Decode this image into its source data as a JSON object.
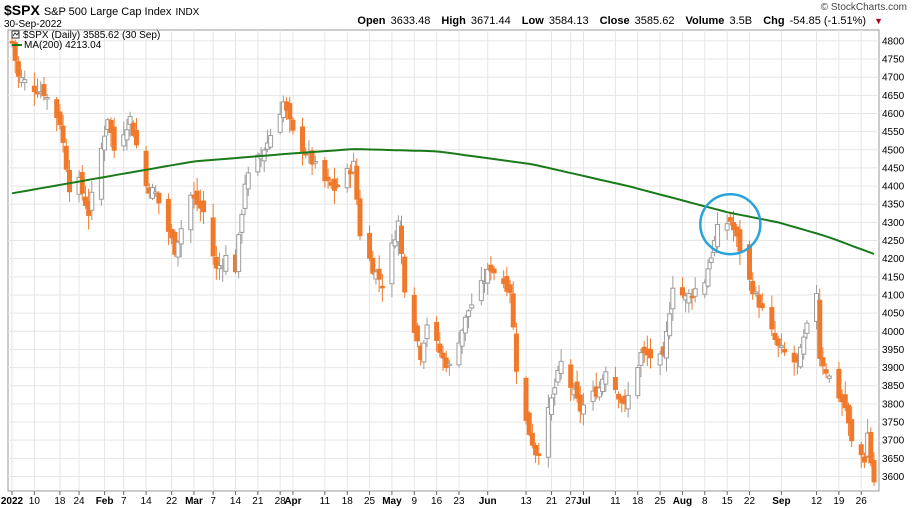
{
  "header": {
    "symbol": "$SPX",
    "name": "S&P 500 Large Cap Index",
    "exchange": "INDX",
    "date": "30-Sep-2022",
    "brand": "© StockCharts.com",
    "open_label": "Open",
    "open": "3633.48",
    "high_label": "High",
    "high": "3671.44",
    "low_label": "Low",
    "low": "3584.13",
    "close_label": "Close",
    "close": "3585.62",
    "volume_label": "Volume",
    "volume": "3.5B",
    "chg_label": "Chg",
    "chg": "-54.85 (-1.51%)"
  },
  "legend": {
    "price": "$SPX (Daily) 3585.62 (30 Sep)",
    "ma": "MA(200) 4213.04"
  },
  "colors": {
    "up": "#9c9c9c",
    "down": "#f0792b",
    "ma": "#1a7a1a",
    "circle": "#29a3dc",
    "grid": "#e6e6e6"
  },
  "chart_data": {
    "type": "candlestick",
    "ylim": [
      3560,
      4830
    ],
    "yticks": [
      3600,
      3650,
      3700,
      3750,
      3800,
      3850,
      3900,
      3950,
      4000,
      4050,
      4100,
      4150,
      4200,
      4250,
      4300,
      4350,
      4400,
      4450,
      4500,
      4550,
      4600,
      4650,
      4700,
      4750,
      4800
    ],
    "xticks": [
      {
        "label": "2022",
        "date": "2022-01-03",
        "bold": true
      },
      {
        "label": "10",
        "date": "2022-01-10"
      },
      {
        "label": "18",
        "date": "2022-01-18"
      },
      {
        "label": "24",
        "date": "2022-01-24"
      },
      {
        "label": "Feb",
        "date": "2022-02-01",
        "bold": true
      },
      {
        "label": "7",
        "date": "2022-02-07"
      },
      {
        "label": "14",
        "date": "2022-02-14"
      },
      {
        "label": "22",
        "date": "2022-02-22"
      },
      {
        "label": "Mar",
        "date": "2022-03-01",
        "bold": true
      },
      {
        "label": "7",
        "date": "2022-03-07"
      },
      {
        "label": "14",
        "date": "2022-03-14"
      },
      {
        "label": "21",
        "date": "2022-03-21"
      },
      {
        "label": "28",
        "date": "2022-03-28"
      },
      {
        "label": "Apr",
        "date": "2022-04-01",
        "bold": true
      },
      {
        "label": "11",
        "date": "2022-04-11"
      },
      {
        "label": "18",
        "date": "2022-04-18"
      },
      {
        "label": "25",
        "date": "2022-04-25"
      },
      {
        "label": "May",
        "date": "2022-05-02",
        "bold": true
      },
      {
        "label": "9",
        "date": "2022-05-09"
      },
      {
        "label": "16",
        "date": "2022-05-16"
      },
      {
        "label": "23",
        "date": "2022-05-23"
      },
      {
        "label": "Jun",
        "date": "2022-06-01",
        "bold": true
      },
      {
        "label": "13",
        "date": "2022-06-13"
      },
      {
        "label": "21",
        "date": "2022-06-21"
      },
      {
        "label": "27",
        "date": "2022-06-27"
      },
      {
        "label": "Jul",
        "date": "2022-07-01",
        "bold": true
      },
      {
        "label": "11",
        "date": "2022-07-11"
      },
      {
        "label": "18",
        "date": "2022-07-18"
      },
      {
        "label": "25",
        "date": "2022-07-25"
      },
      {
        "label": "Aug",
        "date": "2022-08-01",
        "bold": true
      },
      {
        "label": "8",
        "date": "2022-08-08"
      },
      {
        "label": "15",
        "date": "2022-08-15"
      },
      {
        "label": "22",
        "date": "2022-08-22"
      },
      {
        "label": "Sep",
        "date": "2022-09-01",
        "bold": true
      },
      {
        "label": "12",
        "date": "2022-09-12"
      },
      {
        "label": "19",
        "date": "2022-09-19"
      },
      {
        "label": "26",
        "date": "2022-09-26"
      }
    ],
    "close_keypoints": [
      [
        "2022-01-03",
        4796
      ],
      [
        "2022-01-05",
        4700
      ],
      [
        "2022-01-10",
        4670
      ],
      [
        "2022-01-13",
        4659
      ],
      [
        "2022-01-18",
        4577
      ],
      [
        "2022-01-21",
        4398
      ],
      [
        "2022-01-24",
        4410
      ],
      [
        "2022-01-27",
        4326
      ],
      [
        "2022-02-02",
        4590
      ],
      [
        "2022-02-04",
        4500
      ],
      [
        "2022-02-09",
        4587
      ],
      [
        "2022-02-14",
        4401
      ],
      [
        "2022-02-17",
        4380
      ],
      [
        "2022-02-23",
        4225
      ],
      [
        "2022-02-28",
        4374
      ],
      [
        "2022-03-04",
        4328
      ],
      [
        "2022-03-08",
        4170
      ],
      [
        "2022-03-11",
        4204
      ],
      [
        "2022-03-14",
        4173
      ],
      [
        "2022-03-17",
        4411
      ],
      [
        "2022-03-24",
        4520
      ],
      [
        "2022-03-29",
        4631
      ],
      [
        "2022-04-01",
        4545
      ],
      [
        "2022-04-06",
        4481
      ],
      [
        "2022-04-11",
        4413
      ],
      [
        "2022-04-14",
        4392
      ],
      [
        "2022-04-20",
        4459
      ],
      [
        "2022-04-22",
        4271
      ],
      [
        "2022-04-26",
        4175
      ],
      [
        "2022-04-29",
        4131
      ],
      [
        "2022-05-04",
        4300
      ],
      [
        "2022-05-06",
        4123
      ],
      [
        "2022-05-11",
        3935
      ],
      [
        "2022-05-13",
        4023
      ],
      [
        "2022-05-18",
        3923
      ],
      [
        "2022-05-20",
        3901
      ],
      [
        "2022-05-26",
        4058
      ],
      [
        "2022-06-02",
        4176
      ],
      [
        "2022-06-08",
        4115
      ],
      [
        "2022-06-10",
        3901
      ],
      [
        "2022-06-13",
        3750
      ],
      [
        "2022-06-16",
        3667
      ],
      [
        "2022-06-17",
        3675
      ],
      [
        "2022-06-24",
        3912
      ],
      [
        "2022-06-30",
        3785
      ],
      [
        "2022-07-06",
        3845
      ],
      [
        "2022-07-08",
        3899
      ],
      [
        "2022-07-14",
        3790
      ],
      [
        "2022-07-19",
        3937
      ],
      [
        "2022-07-26",
        3921
      ],
      [
        "2022-07-29",
        4130
      ],
      [
        "2022-08-02",
        4091
      ],
      [
        "2022-08-08",
        4140
      ],
      [
        "2022-08-12",
        4280
      ],
      [
        "2022-08-16",
        4305
      ],
      [
        "2022-08-19",
        4228
      ],
      [
        "2022-08-22",
        4138
      ],
      [
        "2022-08-26",
        4057
      ],
      [
        "2022-08-31",
        3955
      ],
      [
        "2022-09-06",
        3908
      ],
      [
        "2022-09-12",
        4110
      ],
      [
        "2022-09-13",
        3932
      ],
      [
        "2022-09-16",
        3873
      ],
      [
        "2022-09-21",
        3790
      ],
      [
        "2022-09-23",
        3693
      ],
      [
        "2022-09-27",
        3648
      ],
      [
        "2022-09-28",
        3719
      ],
      [
        "2022-09-29",
        3640
      ],
      [
        "2022-09-30",
        3586
      ]
    ],
    "ma200_keypoints": [
      [
        "2022-01-03",
        4380
      ],
      [
        "2022-02-01",
        4425
      ],
      [
        "2022-03-01",
        4468
      ],
      [
        "2022-04-01",
        4490
      ],
      [
        "2022-04-20",
        4502
      ],
      [
        "2022-05-16",
        4496
      ],
      [
        "2022-06-15",
        4460
      ],
      [
        "2022-07-15",
        4400
      ],
      [
        "2022-08-15",
        4328
      ],
      [
        "2022-08-31",
        4300
      ],
      [
        "2022-09-15",
        4262
      ],
      [
        "2022-09-30",
        4213
      ]
    ],
    "annotation": {
      "type": "circle",
      "date": "2022-08-16",
      "value": 4295
    }
  }
}
